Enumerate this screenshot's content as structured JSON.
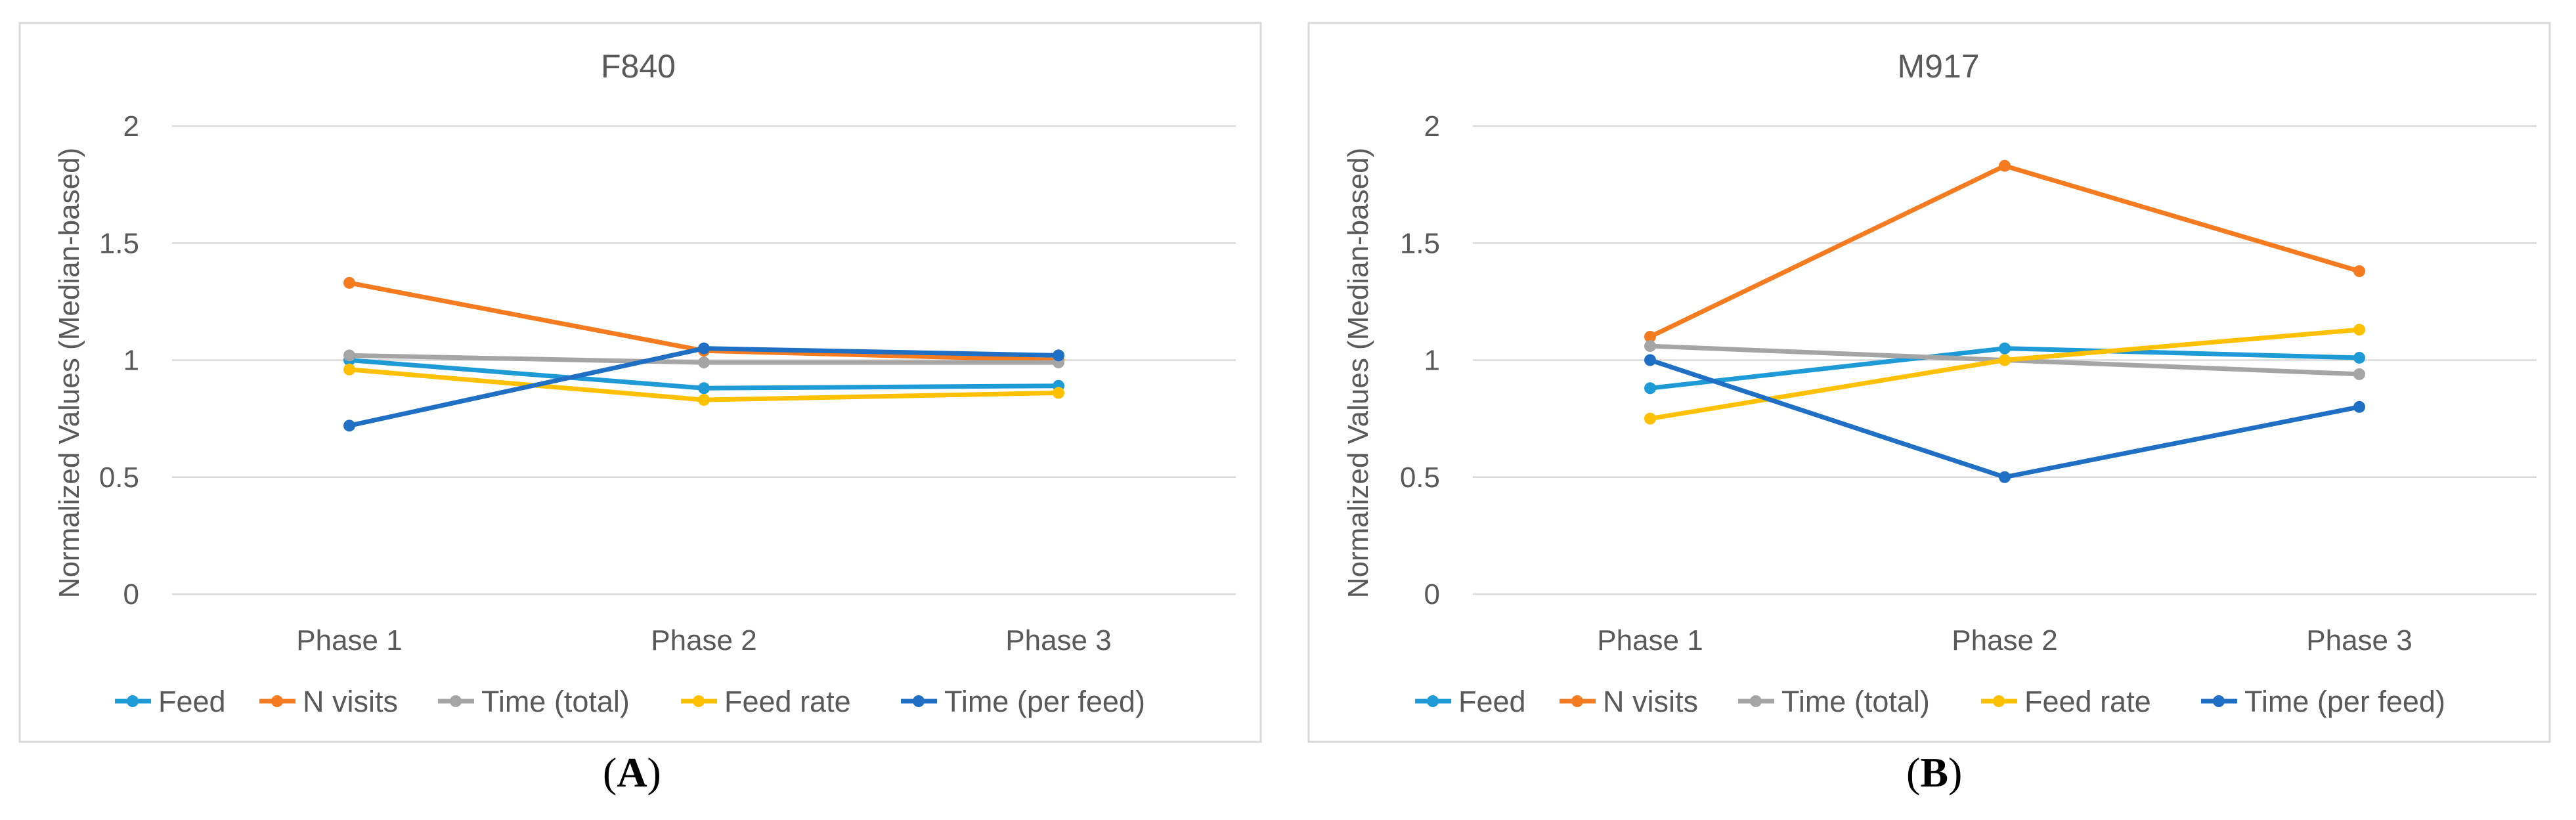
{
  "chart_data": [
    {
      "type": "line",
      "title": "F840",
      "ylabel": "Normalized Values (Median-based)",
      "xlabel": "",
      "categories": [
        "Phase 1",
        "Phase 2",
        "Phase 3"
      ],
      "ylim": [
        0,
        2
      ],
      "yticks": [
        "0",
        "0.5",
        "1",
        "1.5",
        "2"
      ],
      "grid": true,
      "legend": "bottom",
      "panel_label": "A",
      "series": [
        {
          "name": "Feed",
          "color": "#1E9BD7",
          "values": [
            1.0,
            0.88,
            0.89
          ]
        },
        {
          "name": "N visits",
          "color": "#F47B20",
          "values": [
            1.33,
            1.04,
            1.0
          ]
        },
        {
          "name": "Time (total)",
          "color": "#A5A5A5",
          "values": [
            1.02,
            0.99,
            0.99
          ]
        },
        {
          "name": "Feed rate",
          "color": "#FFC000",
          "values": [
            0.96,
            0.83,
            0.86
          ]
        },
        {
          "name": "Time (per feed)",
          "color": "#1F6FC5",
          "values": [
            0.72,
            1.05,
            1.02
          ]
        }
      ]
    },
    {
      "type": "line",
      "title": "M917",
      "ylabel": "Normalized Values (Median-based)",
      "xlabel": "",
      "categories": [
        "Phase 1",
        "Phase 2",
        "Phase 3"
      ],
      "ylim": [
        0,
        2
      ],
      "yticks": [
        "0",
        "0.5",
        "1",
        "1.5",
        "2"
      ],
      "grid": true,
      "legend": "bottom",
      "panel_label": "B",
      "series": [
        {
          "name": "Feed",
          "color": "#1E9BD7",
          "values": [
            0.88,
            1.05,
            1.01
          ]
        },
        {
          "name": "N visits",
          "color": "#F47B20",
          "values": [
            1.1,
            1.83,
            1.38
          ]
        },
        {
          "name": "Time (total)",
          "color": "#A5A5A5",
          "values": [
            1.06,
            1.0,
            0.94
          ]
        },
        {
          "name": "Feed rate",
          "color": "#FFC000",
          "values": [
            0.75,
            1.0,
            1.13
          ]
        },
        {
          "name": "Time (per feed)",
          "color": "#1F6FC5",
          "values": [
            1.0,
            0.5,
            0.8
          ]
        }
      ]
    }
  ]
}
